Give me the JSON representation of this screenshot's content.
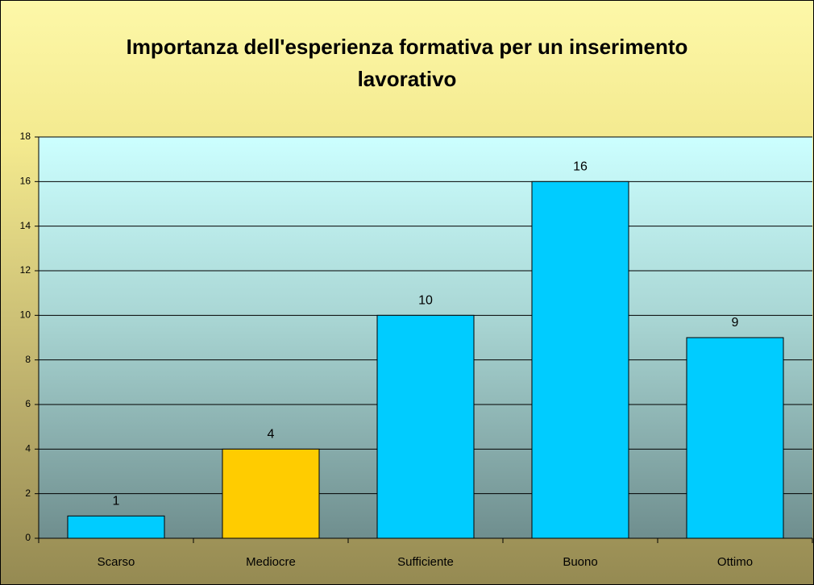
{
  "chart_data": {
    "type": "bar",
    "title": "Importanza dell'esperienza formativa per un inserimento lavorativo",
    "categories": [
      "Scarso",
      "Mediocre",
      "Sufficiente",
      "Buono",
      "Ottimo"
    ],
    "values": [
      1,
      4,
      10,
      16,
      9
    ],
    "colors": [
      "#00ccff",
      "#ffcc00",
      "#00ccff",
      "#00ccff",
      "#00ccff"
    ],
    "ylim": [
      0,
      18
    ],
    "yticks": [
      0,
      2,
      4,
      6,
      8,
      10,
      12,
      14,
      16,
      18
    ],
    "grid": true
  }
}
